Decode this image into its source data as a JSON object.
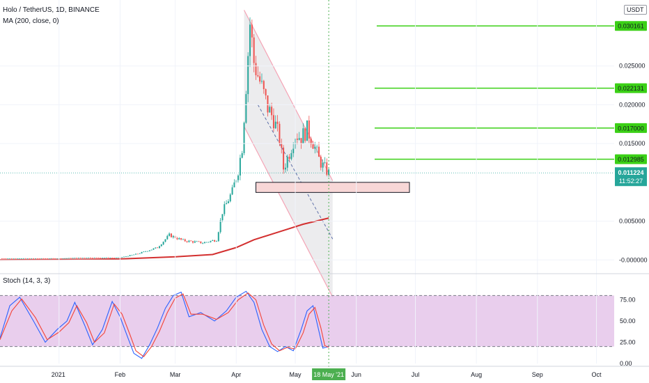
{
  "header": {
    "symbol_line": "Holo / TetherUS, 1D, BINANCE",
    "indicator_line": "MA (200, close, 0)",
    "oscillator_line": "Stoch (14, 3, 3)",
    "currency_badge": "USDT"
  },
  "price_axis": {
    "ticks": [
      "0.025000",
      "0.020000",
      "0.015000",
      "0.005000",
      "-0.000000"
    ],
    "levels": [
      {
        "label": "0.030161",
        "value": 0.030161
      },
      {
        "label": "0.022131",
        "value": 0.022131
      },
      {
        "label": "0.017000",
        "value": 0.017
      },
      {
        "label": "0.012985",
        "value": 0.012985
      }
    ],
    "last_price": "0.011224",
    "countdown": "11:52:27"
  },
  "stoch_axis": {
    "ticks": [
      "75.00",
      "50.00",
      "25.00",
      "0.00"
    ]
  },
  "time_axis": {
    "ticks": [
      "2021",
      "Feb",
      "Mar",
      "Apr",
      "May",
      "Jun",
      "Jul",
      "Aug",
      "Sep",
      "Oct"
    ],
    "cursor_label": "18 May '21"
  },
  "colors": {
    "up": "#26a69a",
    "down": "#ef5350",
    "ma": "#d32f2f",
    "level": "#3bd016",
    "level_label_bg": "#3bd016",
    "channel": "#f4a3b5",
    "stoch_k": "#2962ff",
    "stoch_d": "#f44336",
    "stoch_band": "#e1bee7",
    "cursor": "#4caf50",
    "last_price_bg": "#26a69a"
  },
  "chart_data": [
    {
      "type": "candlestick",
      "title": "Holo / TetherUS, 1D, BINANCE",
      "x_range": [
        "2020-12-02",
        "2021-10-10"
      ],
      "ylim": [
        -0.0015,
        0.0335
      ],
      "indicators": [
        "MA (200, close, 0)"
      ],
      "ma_200": [
        [
          "2020-12-02",
          2e-05
        ],
        [
          "2021-01-01",
          4e-05
        ],
        [
          "2021-02-01",
          0.00012
        ],
        [
          "2021-03-01",
          0.0004
        ],
        [
          "2021-03-20",
          0.0007
        ],
        [
          "2021-04-01",
          0.0016
        ],
        [
          "2021-04-10",
          0.0026
        ],
        [
          "2021-04-25",
          0.0038
        ],
        [
          "2021-05-05",
          0.0046
        ],
        [
          "2021-05-18",
          0.0054
        ]
      ],
      "price_path": [
        [
          "2020-12-02",
          0.0002
        ],
        [
          "2021-01-01",
          0.0002
        ],
        [
          "2021-01-15",
          0.0003
        ],
        [
          "2021-02-01",
          0.0003
        ],
        [
          "2021-02-10",
          0.0008
        ],
        [
          "2021-02-20",
          0.0016
        ],
        [
          "2021-02-26",
          0.0032
        ],
        [
          "2021-03-05",
          0.0025
        ],
        [
          "2021-03-15",
          0.0022
        ],
        [
          "2021-03-22",
          0.0026
        ],
        [
          "2021-03-25",
          0.0062
        ],
        [
          "2021-03-30",
          0.0088
        ],
        [
          "2021-04-02",
          0.0116
        ],
        [
          "2021-04-04",
          0.0146
        ],
        [
          "2021-04-06",
          0.0226
        ],
        [
          "2021-04-07",
          0.0266
        ],
        [
          "2021-04-08",
          0.0305
        ],
        [
          "2021-04-10",
          0.0255
        ],
        [
          "2021-04-12",
          0.0238
        ],
        [
          "2021-04-14",
          0.0222
        ],
        [
          "2021-04-17",
          0.0196
        ],
        [
          "2021-04-20",
          0.0182
        ],
        [
          "2021-04-23",
          0.0156
        ],
        [
          "2021-04-25",
          0.0118
        ],
        [
          "2021-04-28",
          0.0138
        ],
        [
          "2021-05-01",
          0.0162
        ],
        [
          "2021-05-04",
          0.0158
        ],
        [
          "2021-05-07",
          0.0168
        ],
        [
          "2021-05-10",
          0.0152
        ],
        [
          "2021-05-13",
          0.013
        ],
        [
          "2021-05-15",
          0.0121
        ],
        [
          "2021-05-18",
          0.0112
        ]
      ],
      "horizontal_levels": [
        0.030161,
        0.022131,
        0.017,
        0.012985
      ],
      "last_price": 0.011224,
      "channel_upper": [
        [
          "2021-04-05",
          0.0322
        ],
        [
          "2021-05-20",
          0.0102
        ]
      ],
      "channel_lower": [
        [
          "2021-04-05",
          0.0172
        ],
        [
          "2021-05-20",
          -0.0048
        ]
      ],
      "channel_mid": [
        [
          "2021-04-12",
          0.02
        ],
        [
          "2021-05-20",
          0.0027
        ]
      ],
      "support_zone": {
        "from": "2021-04-11",
        "to": "2021-06-28",
        "low": 0.0087,
        "high": 0.01
      },
      "cursor_date": "2021-05-18"
    },
    {
      "type": "line",
      "title": "Stoch (14, 3, 3)",
      "ylim": [
        0,
        100
      ],
      "band": [
        20,
        80
      ],
      "series": [
        {
          "values": [
            [
              "2020-12-02",
              30
            ],
            [
              "2020-12-07",
              68
            ],
            [
              "2020-12-12",
              78
            ],
            [
              "2020-12-19",
              50
            ],
            [
              "2020-12-25",
              25
            ],
            [
              "2020-12-31",
              40
            ],
            [
              "2021-01-05",
              50
            ],
            [
              "2021-01-09",
              72
            ],
            [
              "2021-01-14",
              45
            ],
            [
              "2021-01-18",
              22
            ],
            [
              "2021-01-23",
              40
            ],
            [
              "2021-01-28",
              73
            ],
            [
              "2021-02-01",
              55
            ],
            [
              "2021-02-05",
              30
            ],
            [
              "2021-02-08",
              12
            ],
            [
              "2021-02-12",
              6
            ],
            [
              "2021-02-16",
              22
            ],
            [
              "2021-02-20",
              42
            ],
            [
              "2021-02-24",
              65
            ],
            [
              "2021-02-28",
              80
            ],
            [
              "2021-03-04",
              84
            ],
            [
              "2021-03-08",
              55
            ],
            [
              "2021-03-14",
              60
            ],
            [
              "2021-03-21",
              50
            ],
            [
              "2021-03-27",
              62
            ],
            [
              "2021-04-01",
              78
            ],
            [
              "2021-04-06",
              85
            ],
            [
              "2021-04-10",
              72
            ],
            [
              "2021-04-14",
              40
            ],
            [
              "2021-04-18",
              20
            ],
            [
              "2021-04-22",
              14
            ],
            [
              "2021-04-26",
              20
            ],
            [
              "2021-04-30",
              15
            ],
            [
              "2021-05-04",
              40
            ],
            [
              "2021-05-07",
              62
            ],
            [
              "2021-05-10",
              68
            ],
            [
              "2021-05-13",
              38
            ],
            [
              "2021-05-15",
              18
            ],
            [
              "2021-05-18",
              20
            ]
          ]
        },
        {
          "values": [
            [
              "2020-12-02",
              28
            ],
            [
              "2020-12-08",
              62
            ],
            [
              "2020-12-13",
              76
            ],
            [
              "2020-12-20",
              54
            ],
            [
              "2020-12-26",
              28
            ],
            [
              "2021-01-01",
              37
            ],
            [
              "2021-01-06",
              48
            ],
            [
              "2021-01-10",
              68
            ],
            [
              "2021-01-15",
              48
            ],
            [
              "2021-01-19",
              25
            ],
            [
              "2021-01-24",
              36
            ],
            [
              "2021-01-29",
              70
            ],
            [
              "2021-02-02",
              58
            ],
            [
              "2021-02-06",
              34
            ],
            [
              "2021-02-09",
              15
            ],
            [
              "2021-02-13",
              8
            ],
            [
              "2021-02-17",
              20
            ],
            [
              "2021-02-21",
              38
            ],
            [
              "2021-02-25",
              60
            ],
            [
              "2021-03-01",
              77
            ],
            [
              "2021-03-05",
              82
            ],
            [
              "2021-03-09",
              58
            ],
            [
              "2021-03-15",
              58
            ],
            [
              "2021-03-22",
              52
            ],
            [
              "2021-03-28",
              60
            ],
            [
              "2021-04-02",
              75
            ],
            [
              "2021-04-07",
              83
            ],
            [
              "2021-04-11",
              75
            ],
            [
              "2021-04-15",
              45
            ],
            [
              "2021-04-19",
              23
            ],
            [
              "2021-04-23",
              15
            ],
            [
              "2021-04-27",
              19
            ],
            [
              "2021-05-01",
              17
            ],
            [
              "2021-05-05",
              36
            ],
            [
              "2021-05-08",
              58
            ],
            [
              "2021-05-11",
              66
            ],
            [
              "2021-05-14",
              42
            ],
            [
              "2021-05-16",
              21
            ],
            [
              "2021-05-18",
              19
            ]
          ]
        }
      ]
    }
  ]
}
